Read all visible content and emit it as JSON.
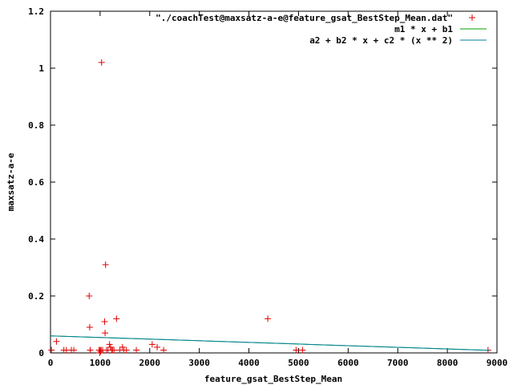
{
  "chart_data": {
    "type": "scatter",
    "title": "",
    "xlabel": "feature_gsat_BestStep_Mean",
    "ylabel": "maxsatz-a-e",
    "xlim": [
      0,
      9000
    ],
    "ylim": [
      0,
      1.2
    ],
    "xticks": [
      "0",
      "1000",
      "2000",
      "3000",
      "4000",
      "5000",
      "6000",
      "7000",
      "8000",
      "9000"
    ],
    "yticks": [
      "0",
      "0.2",
      "0.4",
      "0.6",
      "0.8",
      "1",
      "1.2"
    ],
    "xtick_values": [
      0,
      1000,
      2000,
      3000,
      4000,
      5000,
      6000,
      7000,
      8000,
      9000
    ],
    "ytick_values": [
      0,
      0.2,
      0.4,
      0.6,
      0.8,
      1.0,
      1.2
    ],
    "grid": false,
    "legend_position": "top-right",
    "series": [
      {
        "name": "\"./coachTest@maxsatz-a-e@feature_gsat_BestStep_Mean.dat\"",
        "style": "points",
        "marker": "+",
        "color": "#e00000",
        "points": [
          [
            20,
            0.01
          ],
          [
            120,
            0.04
          ],
          [
            270,
            0.01
          ],
          [
            320,
            0.01
          ],
          [
            420,
            0.01
          ],
          [
            470,
            0.01
          ],
          [
            780,
            0.2
          ],
          [
            790,
            0.09
          ],
          [
            800,
            0.01
          ],
          [
            980,
            0.01
          ],
          [
            990,
            0.0
          ],
          [
            1000,
            0.01
          ],
          [
            1010,
            0.005
          ],
          [
            1020,
            0.01
          ],
          [
            1030,
            1.02
          ],
          [
            1050,
            0.01
          ],
          [
            1090,
            0.11
          ],
          [
            1100,
            0.07
          ],
          [
            1110,
            0.31
          ],
          [
            1130,
            0.01
          ],
          [
            1160,
            0.01
          ],
          [
            1190,
            0.03
          ],
          [
            1210,
            0.02
          ],
          [
            1230,
            0.01
          ],
          [
            1250,
            0.01
          ],
          [
            1280,
            0.01
          ],
          [
            1330,
            0.12
          ],
          [
            1400,
            0.01
          ],
          [
            1450,
            0.02
          ],
          [
            1480,
            0.01
          ],
          [
            1530,
            0.01
          ],
          [
            1730,
            0.01
          ],
          [
            2050,
            0.03
          ],
          [
            2150,
            0.02
          ],
          [
            2280,
            0.01
          ],
          [
            4380,
            0.12
          ],
          [
            4950,
            0.01
          ],
          [
            5080,
            0.01
          ],
          [
            8820,
            0.01
          ]
        ]
      },
      {
        "name": "m1 * x + b1",
        "style": "line",
        "color": "#00a000",
        "x": [
          0,
          8850
        ],
        "y": [
          0.06,
          0.009
        ]
      },
      {
        "name": "a2 + b2 * x + c2 * (x ** 2)",
        "style": "line",
        "color": "#0080a0",
        "x": [
          0,
          1000,
          2000,
          3000,
          4000,
          5000,
          6000,
          7000,
          8000,
          8850
        ],
        "y": [
          0.06,
          0.0543,
          0.0485,
          0.0428,
          0.037,
          0.0312,
          0.0255,
          0.0197,
          0.0139,
          0.009
        ]
      }
    ]
  }
}
